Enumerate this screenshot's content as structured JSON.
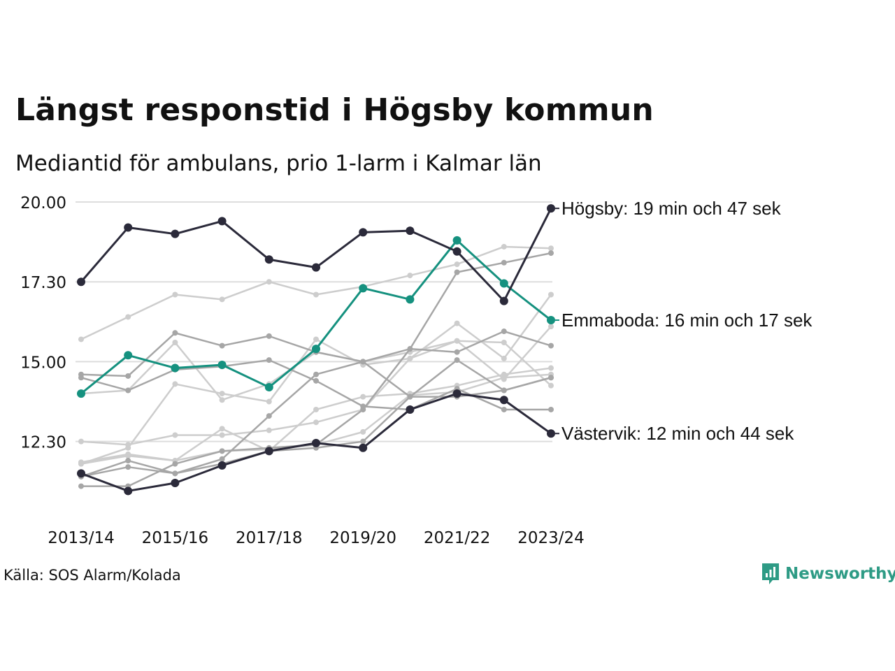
{
  "title": "Längst responstid i Högsby kommun",
  "subtitle": "Mediantid för ambulans, prio 1-larm i Kalmar län",
  "source": "Källa: SOS Alarm/Kolada",
  "brand": "Newsworthy",
  "colors": {
    "highlight_dark": "#2b2a3a",
    "highlight_teal": "#15917f",
    "background_dark": "#a6a6a6",
    "background_light": "#cdcdcd",
    "grid": "#dddddd",
    "brand": "#2e9b85"
  },
  "chart_data": {
    "type": "line",
    "y_unit": "minutes (tick labels shown as min.sec)",
    "ylim": [
      10.5,
      20.0
    ],
    "y_ticks": [
      {
        "value": 12.5,
        "label": "12.30"
      },
      {
        "value": 15.0,
        "label": "15.00"
      },
      {
        "value": 17.5,
        "label": "17.30"
      },
      {
        "value": 20.0,
        "label": "20.00"
      }
    ],
    "categories": [
      "2013/14",
      "2014/15",
      "2015/16",
      "2016/17",
      "2017/18",
      "2018/19",
      "2019/20",
      "2020/21",
      "2021/22",
      "2022/23",
      "2023/24"
    ],
    "tick_labels": [
      "2013/14",
      "2015/16",
      "2017/18",
      "2019/20",
      "2021/22",
      "2023/24"
    ],
    "grid": true,
    "series": [
      {
        "name": "Högsby",
        "style": "highlight_dark",
        "label": "Högsby: 19 min och 47 sek",
        "values": [
          17.5,
          19.2,
          19.0,
          19.4,
          18.2,
          17.95,
          19.05,
          19.1,
          18.45,
          16.9,
          19.8
        ]
      },
      {
        "name": "Emmaboda",
        "style": "highlight_teal",
        "label": "Emmaboda: 16 min och 17 sek",
        "values": [
          14.0,
          15.2,
          14.8,
          14.9,
          14.2,
          15.4,
          17.3,
          16.95,
          18.8,
          17.45,
          16.3
        ]
      },
      {
        "name": "Västervik",
        "style": "highlight_dark",
        "label": "Västervik: 12 min och 44 sek",
        "values": [
          11.5,
          10.95,
          11.2,
          11.75,
          12.2,
          12.45,
          12.3,
          13.5,
          14.0,
          13.8,
          12.75
        ]
      },
      {
        "style": "background_dark",
        "values": [
          14.6,
          14.55,
          15.9,
          15.5,
          15.8,
          15.3,
          15.0,
          15.4,
          15.3,
          15.95,
          15.5
        ]
      },
      {
        "style": "background_dark",
        "values": [
          14.5,
          14.1,
          14.75,
          14.85,
          15.05,
          14.4,
          13.6,
          13.5,
          14.15,
          13.5,
          13.5
        ]
      },
      {
        "style": "background_dark",
        "values": [
          11.4,
          11.9,
          11.5,
          11.95,
          13.3,
          14.6,
          15.0,
          13.9,
          15.05,
          14.1,
          14.5
        ]
      },
      {
        "style": "background_dark",
        "values": [
          11.1,
          11.1,
          11.8,
          12.2,
          12.3,
          12.4,
          13.5,
          15.4,
          17.8,
          18.1,
          18.4
        ]
      },
      {
        "style": "background_dark",
        "values": [
          11.4,
          11.7,
          11.5,
          11.8,
          12.2,
          12.3,
          12.5,
          13.9,
          13.9,
          14.1,
          14.5
        ]
      },
      {
        "style": "background_light",
        "values": [
          15.7,
          16.4,
          17.1,
          16.95,
          17.5,
          17.1,
          17.35,
          17.7,
          18.05,
          18.6,
          18.55
        ]
      },
      {
        "style": "background_light",
        "values": [
          11.8,
          12.3,
          14.3,
          14.0,
          13.75,
          15.7,
          14.9,
          15.1,
          16.2,
          15.1,
          17.1
        ]
      },
      {
        "style": "background_light",
        "values": [
          12.5,
          12.4,
          12.7,
          12.7,
          12.85,
          13.1,
          13.5,
          15.1,
          15.65,
          14.45,
          16.1
        ]
      },
      {
        "style": "background_light",
        "values": [
          14.0,
          14.1,
          15.6,
          13.8,
          14.3,
          15.3,
          15.0,
          15.3,
          15.65,
          15.6,
          14.25
        ]
      },
      {
        "style": "background_light",
        "values": [
          11.85,
          12.1,
          11.9,
          12.9,
          12.2,
          13.5,
          13.9,
          14.0,
          14.25,
          14.6,
          14.8
        ]
      },
      {
        "style": "background_light",
        "values": [
          11.8,
          12.05,
          11.9,
          12.2,
          12.25,
          12.4,
          12.8,
          13.95,
          14.05,
          14.5,
          14.6
        ]
      }
    ]
  }
}
